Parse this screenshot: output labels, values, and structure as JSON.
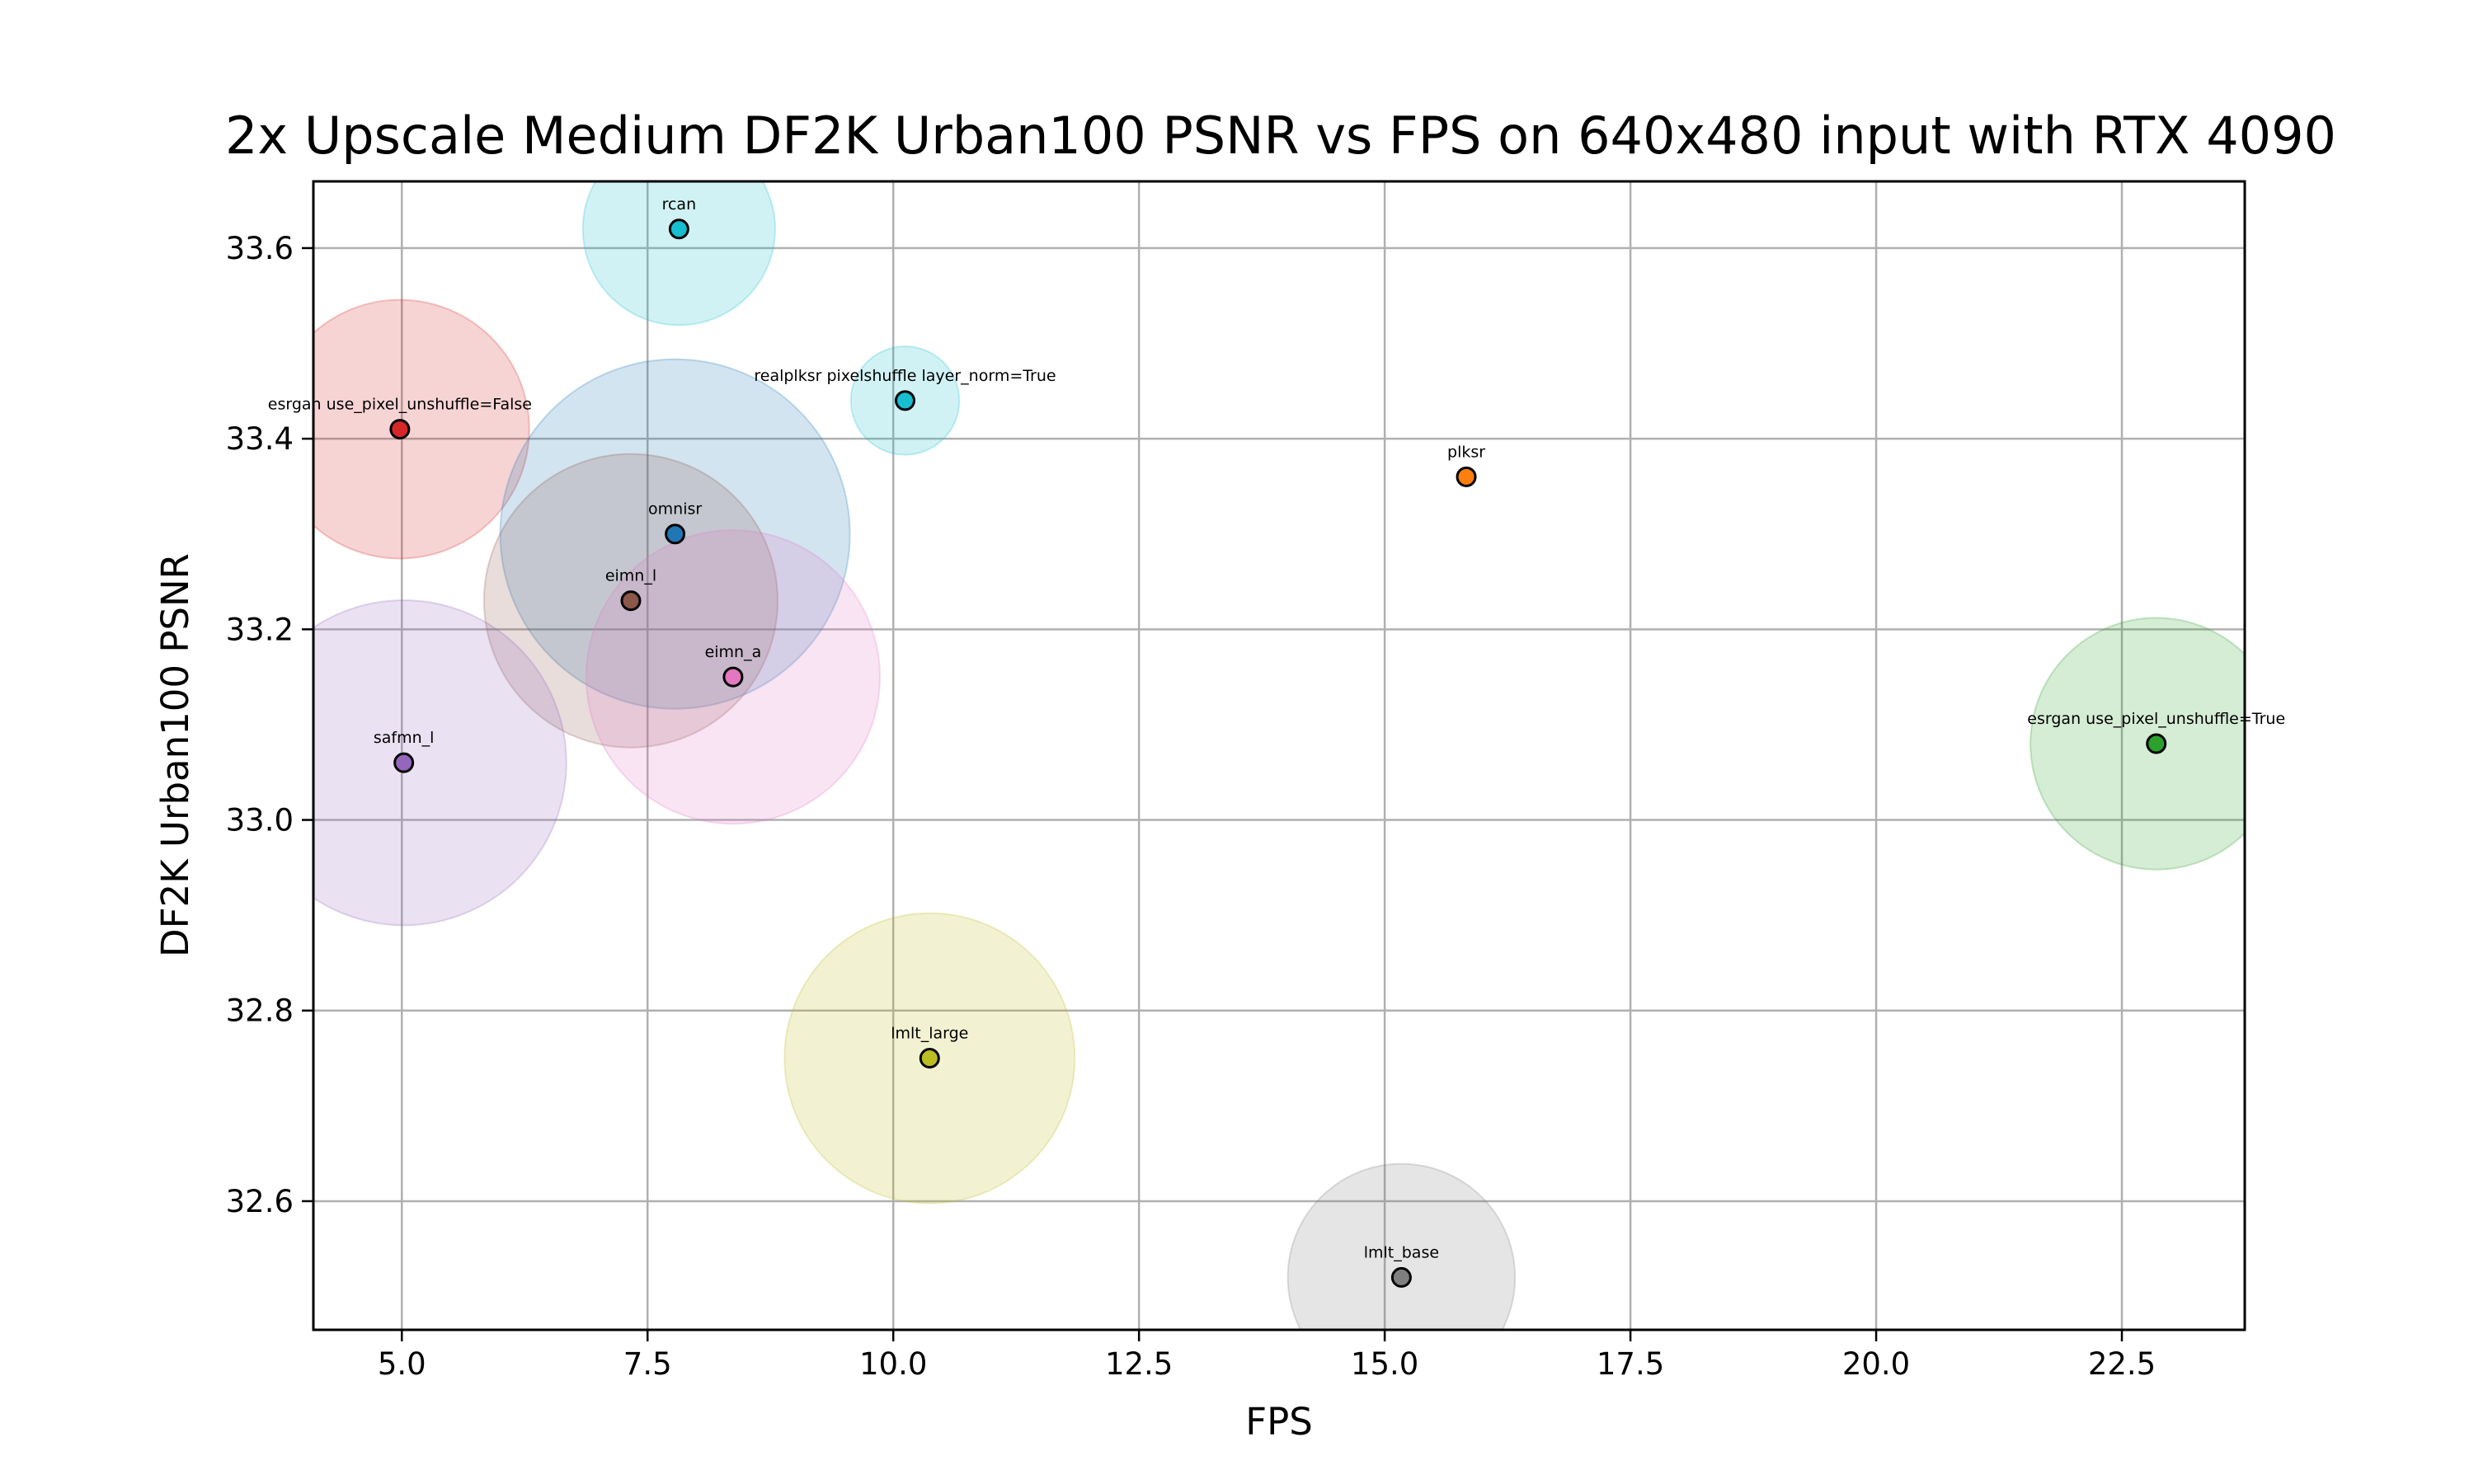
{
  "chart_data": {
    "type": "scatter",
    "title": "2x Upscale Medium DF2K Urban100 PSNR vs FPS on 640x480 input with RTX 4090",
    "xlabel": "FPS",
    "ylabel": "DF2K Urban100 PSNR",
    "xlim": [
      4.1,
      23.75
    ],
    "ylim": [
      32.465,
      33.67
    ],
    "xticks": [
      5.0,
      7.5,
      10.0,
      12.5,
      15.0,
      17.5,
      20.0,
      22.5
    ],
    "xtick_labels": [
      "5.0",
      "7.5",
      "10.0",
      "12.5",
      "15.0",
      "17.5",
      "20.0",
      "22.5"
    ],
    "yticks": [
      32.6,
      32.8,
      33.0,
      33.2,
      33.4,
      33.6
    ],
    "ytick_labels": [
      "32.6",
      "32.8",
      "33.0",
      "33.2",
      "33.4",
      "33.6"
    ],
    "grid": true,
    "legend": "none",
    "note": "Large translucent circles encode a relative size per model",
    "points": [
      {
        "name": "rcan",
        "x": 7.82,
        "y": 33.62,
        "size": 0.55,
        "color": "#17becf"
      },
      {
        "name": "realplksr pixelshuffle layer_norm=True",
        "x": 10.12,
        "y": 33.44,
        "size": 0.31,
        "color": "#17becf"
      },
      {
        "name": "esrgan use_pixel_unshuffle=False",
        "x": 4.98,
        "y": 33.41,
        "size": 0.74,
        "color": "#d62728"
      },
      {
        "name": "plksr",
        "x": 15.83,
        "y": 33.36,
        "size": 0.0,
        "color": "#ff7f0e"
      },
      {
        "name": "omnisr",
        "x": 7.78,
        "y": 33.3,
        "size": 1.0,
        "color": "#1f77b4"
      },
      {
        "name": "eimn_l",
        "x": 7.33,
        "y": 33.23,
        "size": 0.84,
        "color": "#8c564b"
      },
      {
        "name": "eimn_a",
        "x": 8.37,
        "y": 33.15,
        "size": 0.84,
        "color": "#e377c2"
      },
      {
        "name": "esrgan use_pixel_unshuffle=True",
        "x": 22.85,
        "y": 33.08,
        "size": 0.72,
        "color": "#2ca02c"
      },
      {
        "name": "safmn_l",
        "x": 5.02,
        "y": 33.06,
        "size": 0.93,
        "color": "#9467bd"
      },
      {
        "name": "lmlt_large",
        "x": 10.37,
        "y": 32.75,
        "size": 0.83,
        "color": "#bcbd22"
      },
      {
        "name": "lmlt_base",
        "x": 15.17,
        "y": 32.52,
        "size": 0.65,
        "color": "#7f7f7f"
      }
    ]
  }
}
